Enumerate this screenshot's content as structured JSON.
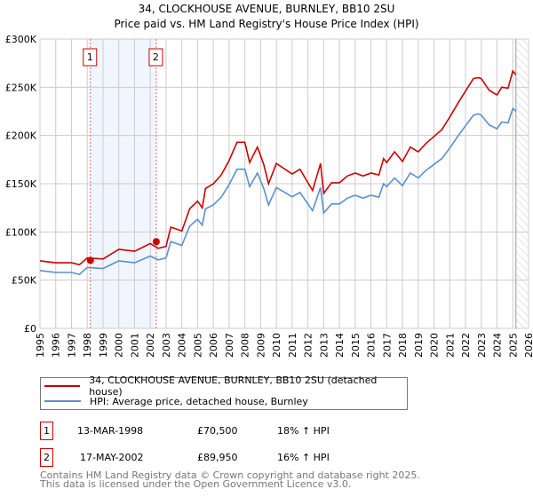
{
  "chart_data": {
    "type": "line",
    "title": "34, CLOCKHOUSE AVENUE, BURNLEY, BB10 2SU",
    "subtitle": "Price paid vs. HM Land Registry's House Price Index (HPI)",
    "xlim": [
      1995,
      2026
    ],
    "ylim": [
      0,
      300000
    ],
    "y_ticks": [
      {
        "v": 0,
        "label": "£0"
      },
      {
        "v": 50000,
        "label": "£50K"
      },
      {
        "v": 100000,
        "label": "£100K"
      },
      {
        "v": 150000,
        "label": "£150K"
      },
      {
        "v": 200000,
        "label": "£200K"
      },
      {
        "v": 250000,
        "label": "£250K"
      },
      {
        "v": 300000,
        "label": "£300K"
      }
    ],
    "x_ticks": [
      "1995",
      "1996",
      "1997",
      "1998",
      "1999",
      "2000",
      "2001",
      "2002",
      "2003",
      "2004",
      "2005",
      "2006",
      "2007",
      "2008",
      "2009",
      "2010",
      "2011",
      "2012",
      "2013",
      "2014",
      "2015",
      "2016",
      "2017",
      "2018",
      "2019",
      "2020",
      "2021",
      "2022",
      "2023",
      "2024",
      "2025",
      "2026"
    ],
    "grid": true,
    "x": [
      1995,
      1996,
      1997,
      1997.5,
      1998,
      1999,
      2000,
      2001,
      2002,
      2002.5,
      2003,
      2003.3,
      2004,
      2004.5,
      2005,
      2005.3,
      2005.5,
      2006,
      2006.5,
      2007,
      2007.5,
      2008,
      2008.3,
      2008.8,
      2009.2,
      2009.5,
      2010,
      2011,
      2011.5,
      2012,
      2012.3,
      2012.8,
      2013,
      2013.5,
      2014,
      2014.5,
      2015,
      2015.5,
      2016,
      2016.5,
      2016.8,
      2017,
      2017.5,
      2018,
      2018.5,
      2019,
      2019.5,
      2020,
      2020.5,
      2021,
      2021.5,
      2022,
      2022.5,
      2022.8,
      2023,
      2023.5,
      2024,
      2024.3,
      2024.7,
      2025,
      2025.2
    ],
    "series": [
      {
        "name": "34, CLOCKHOUSE AVENUE, BURNLEY, BB10 2SU (detached house)",
        "color": "#cc0000",
        "values": [
          70,
          68,
          68,
          66,
          73,
          72,
          82,
          80,
          88,
          83,
          85,
          105,
          101,
          124,
          132,
          125,
          145,
          150,
          159,
          174,
          193,
          193,
          172,
          188,
          170,
          150,
          171,
          160,
          165,
          151,
          143,
          171,
          140,
          151,
          151,
          158,
          161,
          158,
          161,
          159,
          176,
          172,
          183,
          173,
          188,
          183,
          192,
          199,
          206,
          219,
          233,
          246,
          259,
          260,
          259,
          247,
          242,
          250,
          249,
          267,
          263
        ]
      },
      {
        "name": "HPI: Average price, detached house, Burnley",
        "color": "#5b8fd0",
        "values": [
          60,
          58,
          58,
          56,
          63,
          62,
          70,
          68,
          75,
          71,
          73,
          90,
          86,
          106,
          113,
          107,
          124,
          128,
          136,
          149,
          165,
          165,
          147,
          161,
          145,
          128,
          146,
          136.5,
          141,
          129,
          122,
          146,
          119.6,
          129,
          129,
          135,
          138,
          135,
          138,
          136,
          150,
          147,
          156,
          148,
          161,
          156,
          164,
          170,
          176,
          187,
          199,
          210,
          221,
          222.5,
          221,
          211,
          207,
          214,
          213,
          228,
          225
        ]
      }
    ],
    "value_unit": "£K",
    "sales": [
      {
        "id": "1",
        "x": 1998.2,
        "y": 70500
      },
      {
        "id": "2",
        "x": 2002.38,
        "y": 89950
      }
    ],
    "forecast_start": 2025.2,
    "legend_position": "below"
  },
  "transactions": [
    {
      "id": "1",
      "date": "13-MAR-1998",
      "price": "£70,500",
      "hpi": "18% ↑ HPI"
    },
    {
      "id": "2",
      "date": "17-MAY-2002",
      "price": "£89,950",
      "hpi": "16% ↑ HPI"
    }
  ],
  "footer": {
    "line1": "Contains HM Land Registry data © Crown copyright and database right 2025.",
    "line2": "This data is licensed under the Open Government Licence v3.0."
  }
}
